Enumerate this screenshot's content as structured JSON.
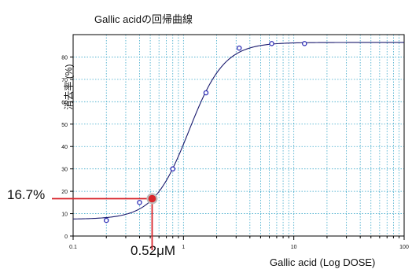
{
  "chart_data": {
    "type": "scatter",
    "title": "Gallic acidの回帰曲線",
    "xlabel": "Gallic acid (Log DOSE)",
    "ylabel": "消去率 (%)",
    "x_scale": "log",
    "xlim": [
      0.1,
      100
    ],
    "ylim": [
      0,
      90
    ],
    "x_ticks": [
      0.1,
      1,
      10,
      100
    ],
    "x_tick_labels": [
      "0.1",
      "1",
      "10",
      "100"
    ],
    "y_ticks": [
      0,
      10,
      20,
      30,
      40,
      50,
      60,
      70,
      80
    ],
    "grid": true,
    "points": {
      "x": [
        0.2,
        0.4,
        0.8,
        1.6,
        3.2,
        6.3,
        12.5
      ],
      "y": [
        7,
        15,
        30,
        64,
        84,
        86,
        86
      ]
    },
    "fit_curve": {
      "bottom": 7.5,
      "top": 86.5,
      "ec50": 1.12,
      "hill": 2.7
    },
    "highlight": {
      "x": 0.52,
      "y": 16.7,
      "x_label": "0.52μM",
      "y_label": "16.7%"
    },
    "colors": {
      "points": "#2b2bb5",
      "curve": "#1a1a6e",
      "grid": "#3aa7c9",
      "highlight": "#d9262c",
      "frame": "#000000"
    }
  }
}
